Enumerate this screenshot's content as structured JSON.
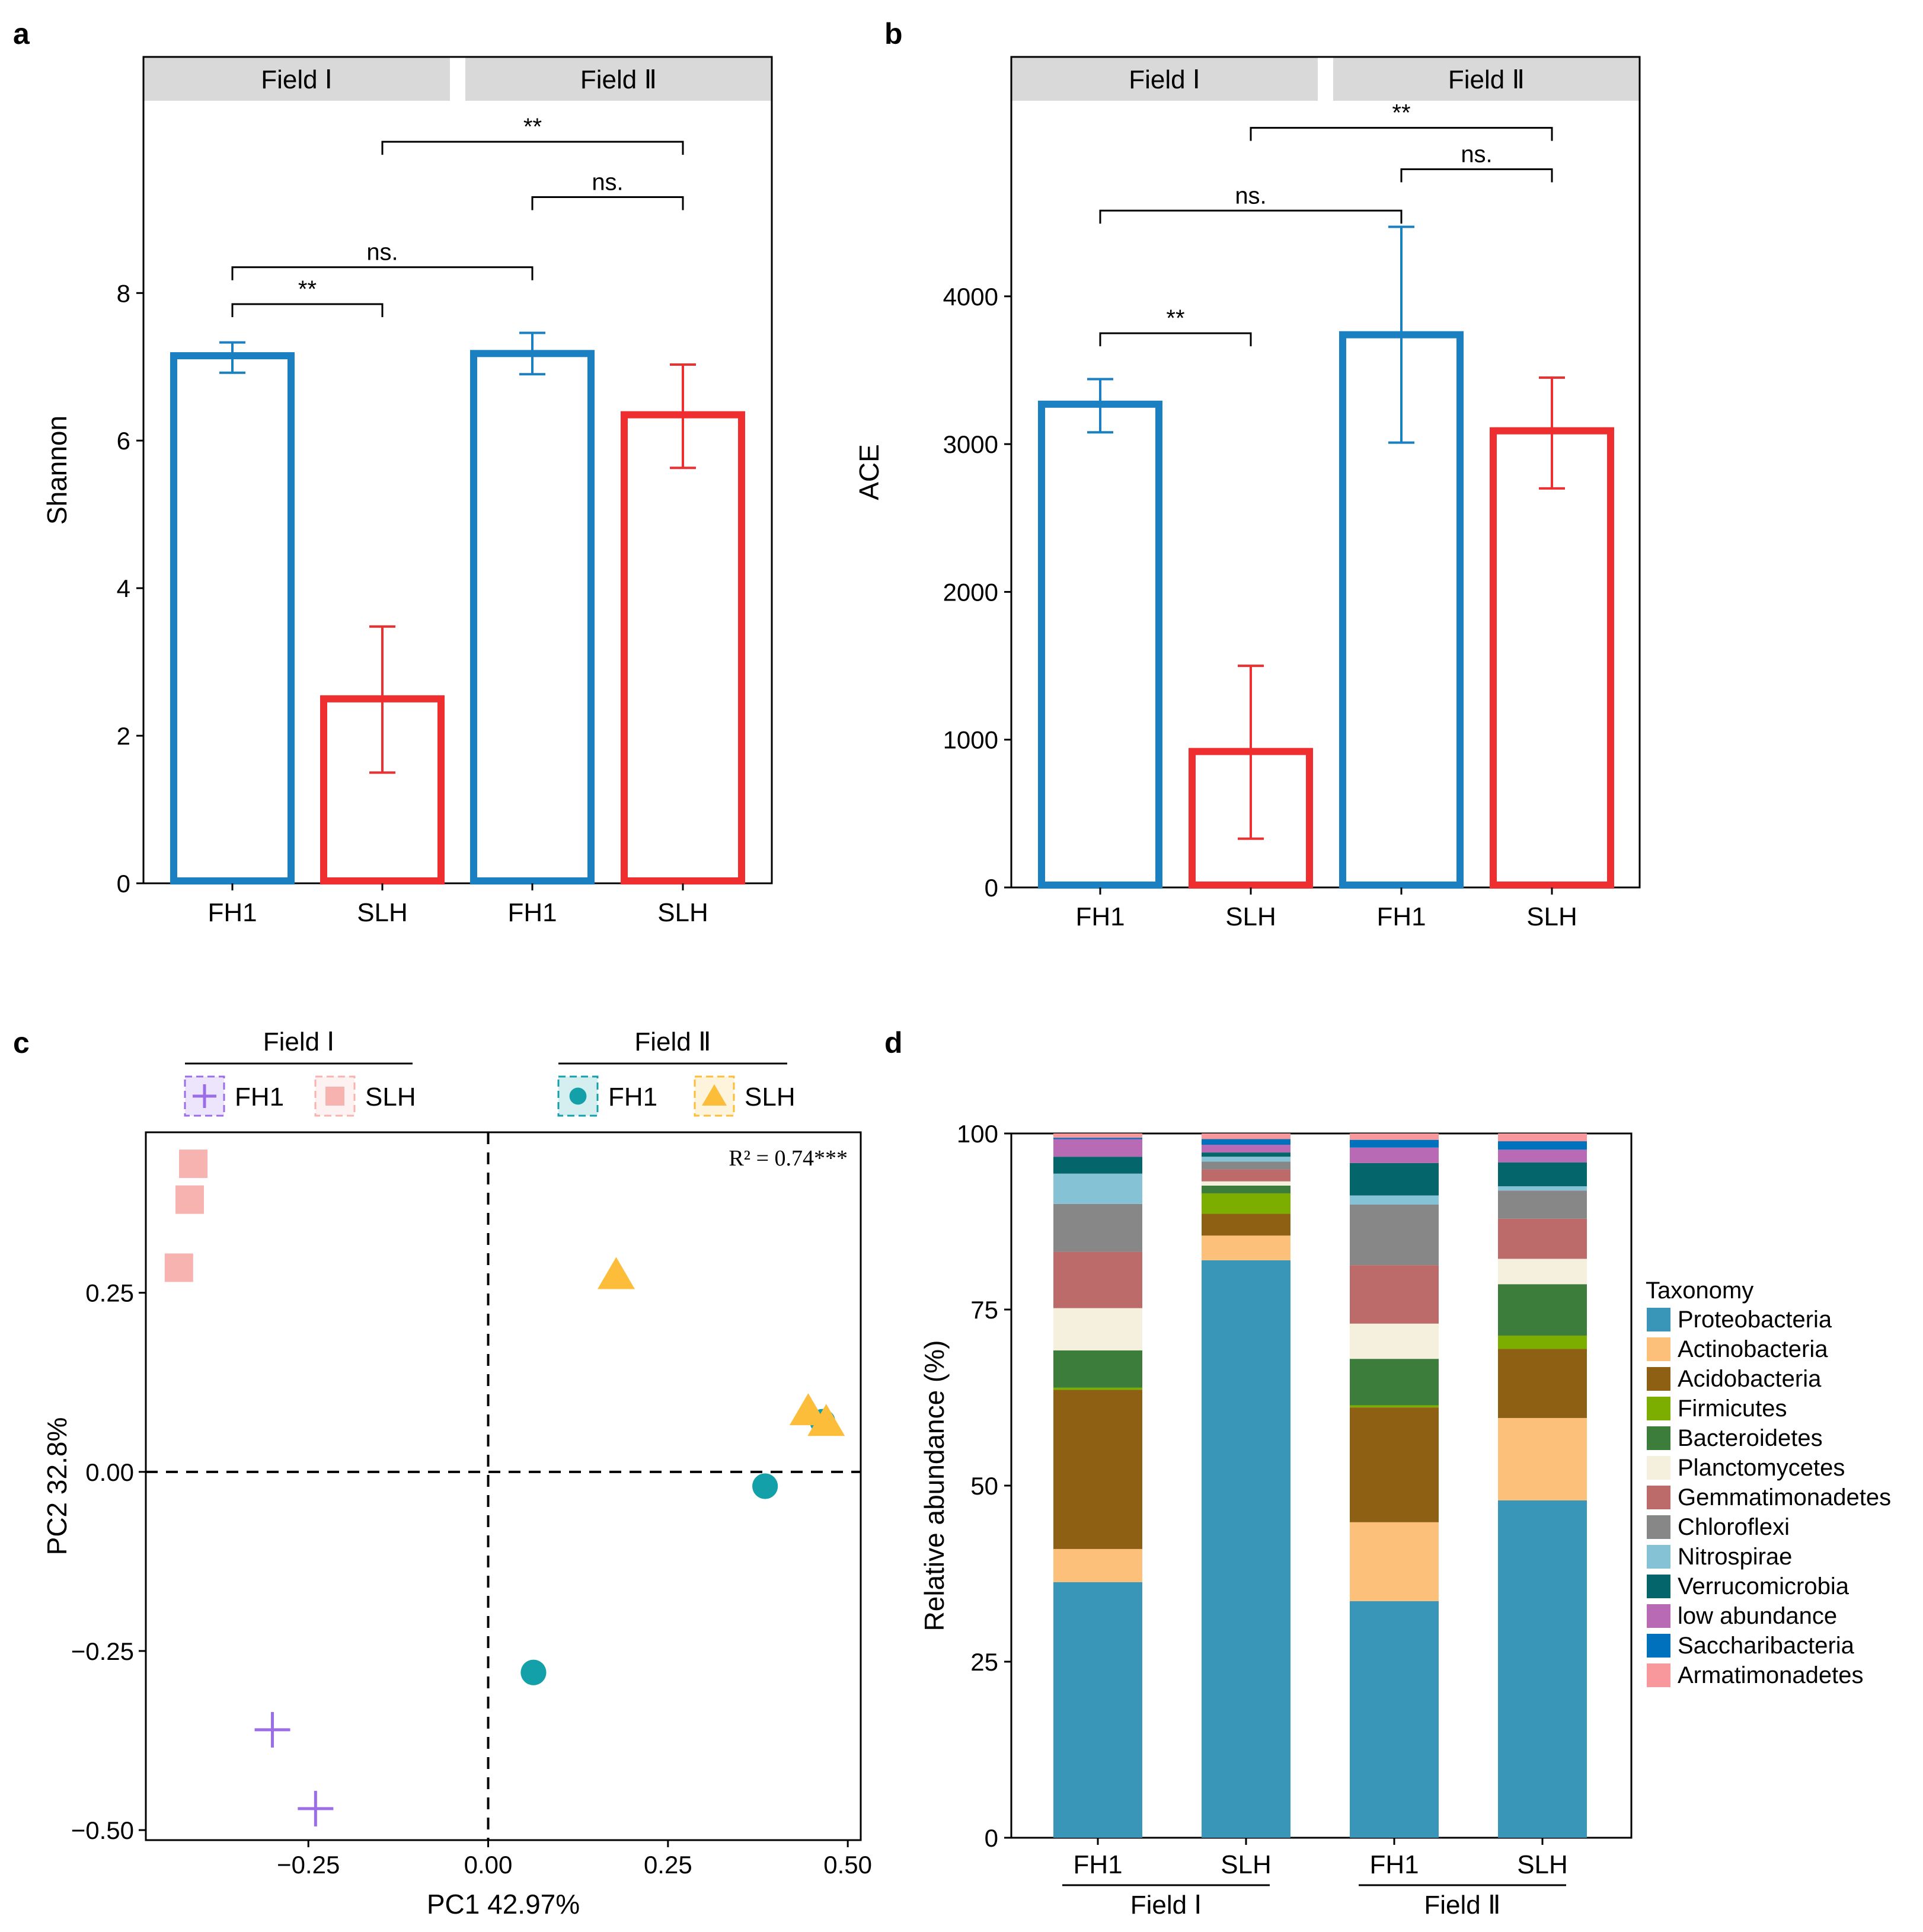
{
  "panels": {
    "a": {
      "label": "a"
    },
    "b": {
      "label": "b"
    },
    "c": {
      "label": "c"
    },
    "d": {
      "label": "d"
    }
  },
  "colors": {
    "blue": "#1a80c1",
    "red": "#ee2e2f",
    "strip": "#d9d9d9",
    "fh1_c": "#9b6ee8",
    "slh_c": "#f7b3b0",
    "fh1_d": "#14a0a8",
    "slh_d": "#fbbd3a"
  },
  "chart_data": [
    {
      "id": "a",
      "type": "bar",
      "facets": [
        "Field Ⅰ",
        "Field Ⅱ"
      ],
      "categories": [
        "FH1",
        "SLH",
        "FH1",
        "SLH"
      ],
      "values": [
        7.15,
        2.5,
        7.18,
        6.35
      ],
      "err_low": [
        6.92,
        1.5,
        6.9,
        5.63
      ],
      "err_high": [
        7.33,
        3.48,
        7.46,
        7.03
      ],
      "bar_colors": [
        "blue",
        "red",
        "blue",
        "red"
      ],
      "ylabel": "Shannon",
      "ylim": [
        0,
        11.2
      ],
      "yticks": [
        0,
        2,
        4,
        6,
        8
      ],
      "brackets": [
        {
          "from": 0,
          "to": 1,
          "y": 7.85,
          "label": "**"
        },
        {
          "from": 0,
          "to": 2,
          "y": 8.35,
          "label": "ns."
        },
        {
          "from": 2,
          "to": 3,
          "y": 9.3,
          "label": "ns."
        },
        {
          "from": 1,
          "to": 3,
          "y": 10.05,
          "label": "**"
        }
      ]
    },
    {
      "id": "b",
      "type": "bar",
      "facets": [
        "Field Ⅰ",
        "Field Ⅱ"
      ],
      "categories": [
        "FH1",
        "SLH",
        "FH1",
        "SLH"
      ],
      "values": [
        3270,
        920,
        3740,
        3090
      ],
      "err_low": [
        3080,
        330,
        3010,
        2700
      ],
      "err_high": [
        3440,
        1500,
        4470,
        3450
      ],
      "bar_colors": [
        "blue",
        "red",
        "blue",
        "red"
      ],
      "ylabel": "ACE",
      "ylim": [
        0,
        5620
      ],
      "yticks": [
        0,
        1000,
        2000,
        3000,
        4000
      ],
      "brackets": [
        {
          "from": 0,
          "to": 1,
          "y": 3750,
          "label": "**"
        },
        {
          "from": 0,
          "to": 2,
          "y": 4580,
          "label": "ns."
        },
        {
          "from": 2,
          "to": 3,
          "y": 4860,
          "label": "ns."
        },
        {
          "from": 1,
          "to": 3,
          "y": 5140,
          "label": "**"
        }
      ]
    },
    {
      "id": "c",
      "type": "scatter",
      "xlabel": "PC1 42.97%",
      "ylabel": "PC2 32.8%",
      "xlim": [
        -0.476,
        0.518
      ],
      "ylim": [
        -0.514,
        0.474
      ],
      "xticks": [
        -0.25,
        0.0,
        0.25,
        0.5
      ],
      "xtick_labels": [
        "−0.25",
        "0.00",
        "0.25",
        "0.50"
      ],
      "yticks": [
        -0.5,
        -0.25,
        0.0,
        0.25
      ],
      "ytick_labels": [
        "−0.50",
        "−0.25",
        "0.00",
        "0.25"
      ],
      "annotation": "R² = 0.74***",
      "legend_groups": [
        {
          "title": "Field Ⅰ",
          "items": [
            {
              "label": "FH1",
              "series": 0
            },
            {
              "label": "SLH",
              "series": 1
            }
          ]
        },
        {
          "title": "Field Ⅱ",
          "items": [
            {
              "label": "FH1",
              "series": 2
            },
            {
              "label": "SLH",
              "series": 3
            }
          ]
        }
      ],
      "series": [
        {
          "name": "Field Ⅰ FH1",
          "shape": "cross",
          "color": "fh1_c",
          "points": [
            [
              -0.3,
              -0.36
            ],
            [
              -0.24,
              -0.47
            ]
          ]
        },
        {
          "name": "Field Ⅰ SLH",
          "shape": "square",
          "color": "slh_c",
          "points": [
            [
              -0.41,
              0.43
            ],
            [
              -0.415,
              0.38
            ],
            [
              -0.43,
              0.285
            ]
          ]
        },
        {
          "name": "Field Ⅱ FH1",
          "shape": "circle",
          "color": "fh1_d",
          "points": [
            [
              0.465,
              0.07
            ],
            [
              0.385,
              -0.02
            ],
            [
              0.063,
              -0.28
            ]
          ]
        },
        {
          "name": "Field Ⅱ SLH",
          "shape": "triangle",
          "color": "slh_d",
          "points": [
            [
              0.178,
              0.275
            ],
            [
              0.445,
              0.085
            ],
            [
              0.47,
              0.07
            ]
          ]
        }
      ]
    },
    {
      "id": "d",
      "type": "bar",
      "stacked": true,
      "categories": [
        "FH1",
        "SLH",
        "FH1",
        "SLH"
      ],
      "groups": [
        {
          "label": "Field Ⅰ",
          "cats": [
            0,
            1
          ]
        },
        {
          "label": "Field Ⅱ",
          "cats": [
            2,
            3
          ]
        }
      ],
      "ylabel": "Relative abundance (%)",
      "ylim": [
        0,
        100
      ],
      "yticks": [
        0,
        25,
        50,
        75,
        100
      ],
      "legend_title": "Taxonomy",
      "series": [
        {
          "name": "Proteobacteria",
          "color": "#3a96b9",
          "values": [
            36.3,
            82.0,
            33.6,
            47.9
          ]
        },
        {
          "name": "Actinobacteria",
          "color": "#fdc07a",
          "values": [
            4.7,
            3.5,
            11.2,
            11.7
          ]
        },
        {
          "name": "Acidobacteria",
          "color": "#8d6014",
          "values": [
            22.6,
            3.1,
            16.3,
            9.8
          ]
        },
        {
          "name": "Firmicutes",
          "color": "#7cae00",
          "values": [
            0.3,
            2.9,
            0.3,
            1.9
          ]
        },
        {
          "name": "Bacteroidetes",
          "color": "#3c7d3c",
          "values": [
            5.3,
            1.1,
            6.6,
            7.3
          ]
        },
        {
          "name": "Planctomycetes",
          "color": "#f4f0dd",
          "values": [
            6.0,
            0.6,
            5.0,
            3.6
          ]
        },
        {
          "name": "Gemmatimonadetes",
          "color": "#bd6a6a",
          "values": [
            8.0,
            1.7,
            8.3,
            5.7
          ]
        },
        {
          "name": "Chloroflexi",
          "color": "#878787",
          "values": [
            6.8,
            1.1,
            8.6,
            4.0
          ]
        },
        {
          "name": "Nitrospirae",
          "color": "#86c2d6",
          "values": [
            4.3,
            0.7,
            1.3,
            0.6
          ]
        },
        {
          "name": "Verrucomicrobia",
          "color": "#04656b",
          "values": [
            2.4,
            0.6,
            4.6,
            3.4
          ]
        },
        {
          "name": "low abundance",
          "color": "#b86bb4",
          "values": [
            2.5,
            1.1,
            2.2,
            1.8
          ]
        },
        {
          "name": "Saccharibacteria",
          "color": "#0072bd",
          "values": [
            0.2,
            0.8,
            1.1,
            1.2
          ]
        },
        {
          "name": "Armatimonadetes",
          "color": "#f8989c",
          "values": [
            0.6,
            0.8,
            0.9,
            1.1
          ]
        }
      ]
    }
  ]
}
